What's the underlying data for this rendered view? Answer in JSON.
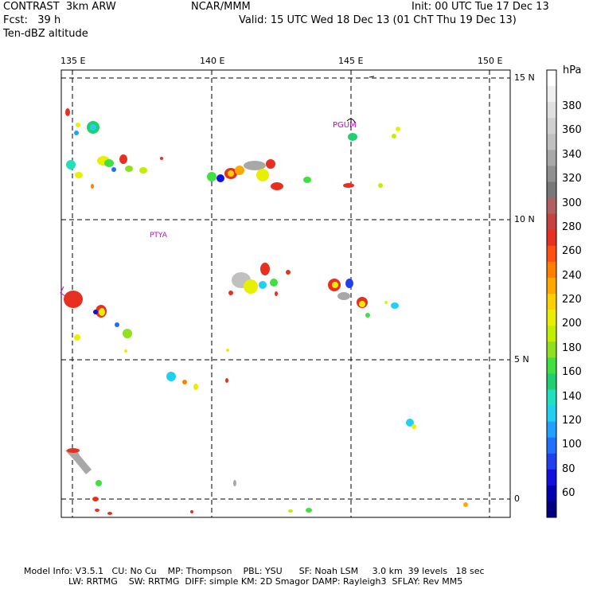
{
  "header": {
    "line1_left": "CONTRAST  3km ARW",
    "line1_mid": "NCAR/MMM",
    "line1_right": "Init: 00 UTC Tue 17 Dec 13",
    "line2_left": "Fcst:   39 h",
    "line2_right": "Valid: 15 UTC Wed 18 Dec 13 (01 ChT Thu 19 Dec 13)",
    "line3_left": "Ten-dBZ altitude"
  },
  "map": {
    "lon_labels": [
      "135 E",
      "140 E",
      "145 E",
      "150 E"
    ],
    "lat_labels": [
      "15 N",
      "10 N",
      "5 N",
      "0"
    ],
    "stations": [
      {
        "code": "PGUM",
        "color": "#cc00cc"
      },
      {
        "code": "PTYA",
        "color": "#cc00cc"
      }
    ]
  },
  "colorbar": {
    "unit": "hPa",
    "labels": [
      "380",
      "360",
      "340",
      "320",
      "300",
      "280",
      "260",
      "240",
      "220",
      "200",
      "180",
      "160",
      "140",
      "120",
      "100",
      "80",
      "60"
    ],
    "colors": [
      "#ffffff",
      "#f0f0f0",
      "#e0e0e0",
      "#d0d0d0",
      "#c0c0c0",
      "#a8a8a8",
      "#909090",
      "#787878",
      "#b06060",
      "#c84040",
      "#e83020",
      "#ff5010",
      "#ff8000",
      "#ffa800",
      "#ffd000",
      "#e8f000",
      "#c0f000",
      "#90e020",
      "#40e040",
      "#20d070",
      "#20e0c0",
      "#20d0f0",
      "#20a0ff",
      "#2070ff",
      "#2040f0",
      "#1010e0",
      "#0000b0",
      "#000080"
    ]
  },
  "footer": {
    "line1": "Model Info: V3.5.1   CU: No Cu    MP: Thompson    PBL: YSU      SF: Noah LSM     3.0 km  39 levels   18 sec",
    "line2": "                LW: RRTMG    SW: RRTMG  DIFF: simple KM: 2D Smagor DAMP: Rayleigh3  SFLAY: Rev MM5"
  }
}
